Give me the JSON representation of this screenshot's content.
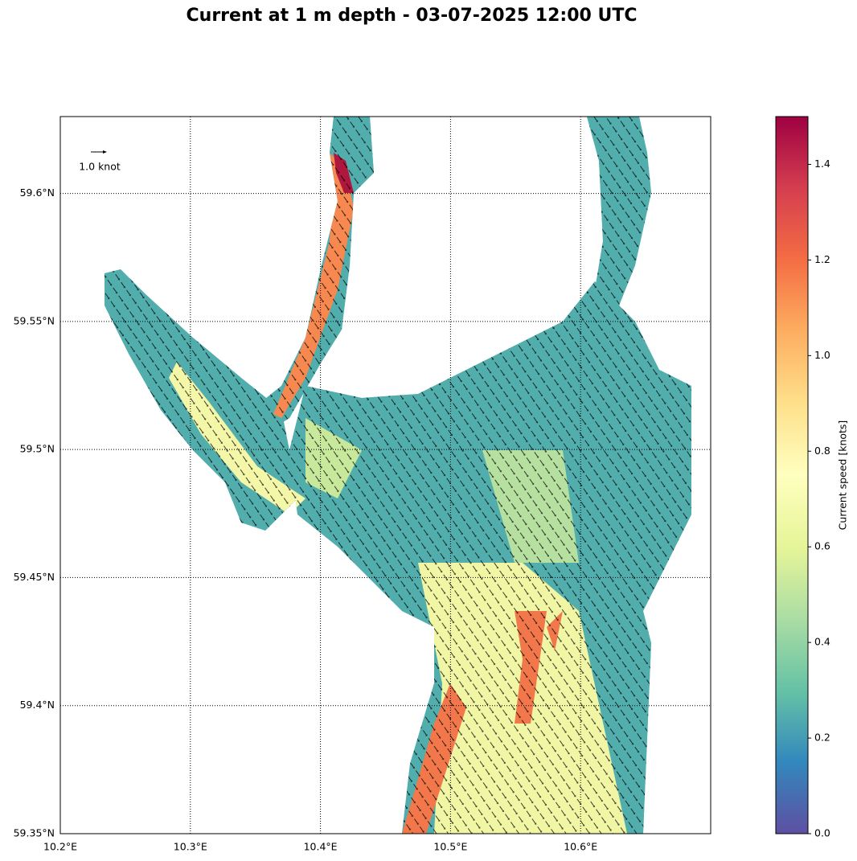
{
  "chart_data": {
    "type": "map",
    "title": "Current at 1 m depth - 03-07-2025 12:00 UTC",
    "xlim": [
      10.2,
      10.7
    ],
    "ylim": [
      59.35,
      59.63
    ],
    "xticks": [
      {
        "value": 10.2,
        "label": "10.2°E"
      },
      {
        "value": 10.3,
        "label": "10.3°E"
      },
      {
        "value": 10.4,
        "label": "10.4°E"
      },
      {
        "value": 10.5,
        "label": "10.5°E"
      },
      {
        "value": 10.6,
        "label": "10.6°E"
      }
    ],
    "yticks": [
      {
        "value": 59.35,
        "label": "59.35°N"
      },
      {
        "value": 59.4,
        "label": "59.4°N"
      },
      {
        "value": 59.45,
        "label": "59.45°N"
      },
      {
        "value": 59.5,
        "label": "59.5°N"
      },
      {
        "value": 59.55,
        "label": "59.55°N"
      },
      {
        "value": 59.6,
        "label": "59.6°N"
      }
    ],
    "grid": true,
    "quiver_key": {
      "value": 1,
      "label": "1.0 knot"
    },
    "colorbar": {
      "label": "Current speed [knots]",
      "lim": [
        0,
        1.5
      ],
      "ticks": [
        {
          "value": 0,
          "label": "0.0"
        },
        0.2,
        0.4,
        0.6,
        0.8,
        {
          "value": 1,
          "label": "1.0"
        },
        1.2,
        1.4
      ],
      "colors": [
        "#5e4fa2",
        "#3288bd",
        "#66c2a5",
        "#abdda4",
        "#e6f598",
        "#ffffbf",
        "#fee08b",
        "#fdae61",
        "#f46d43",
        "#d53e4f",
        "#9e0142"
      ]
    }
  }
}
